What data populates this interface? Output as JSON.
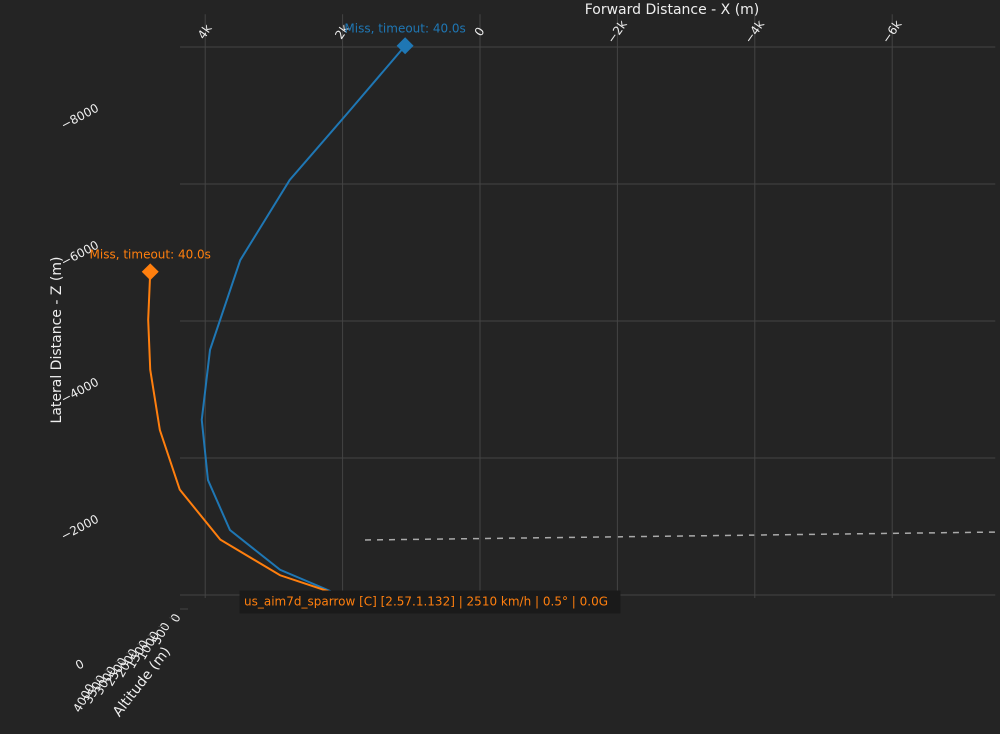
{
  "chart_data": {
    "type": "line3d",
    "x_title": "Forward Distance - X (m)",
    "z_title": "Lateral Distance - Z (m)",
    "y_title": "Altitude (m)",
    "xlim": [
      5000,
      -7500
    ],
    "zlim": [
      -9500,
      0
    ],
    "ylim": [
      0,
      4000
    ],
    "xticks": [
      {
        "value": 4000,
        "label": "4k"
      },
      {
        "value": 2000,
        "label": "2k"
      },
      0,
      {
        "value": -2000,
        "label": "−2k"
      },
      {
        "value": -4000,
        "label": "−4k"
      },
      {
        "value": -6000,
        "label": "−6k"
      }
    ],
    "zticks": [
      {
        "value": -8000,
        "label": "−8000"
      },
      {
        "value": -6000,
        "label": "−6000"
      },
      {
        "value": -4000,
        "label": "−4000"
      },
      {
        "value": -2000,
        "label": "−2000"
      },
      0
    ],
    "yticks": [
      0,
      500,
      1000,
      1500,
      2000,
      2500,
      3000,
      3500,
      4000
    ],
    "grid": true,
    "series": [
      {
        "color": "#1f77b4",
        "x": [
          2040,
          2910,
          3640,
          3960,
          4050,
          3930,
          3490,
          2770,
          1890,
          1090
        ],
        "z": [
          -1020,
          -1390,
          -1970,
          -2700,
          -3580,
          -4600,
          -5910,
          -7080,
          -8100,
          -9040
        ],
        "annotation": "Miss, timeout: 40.0s"
      },
      {
        "color": "#ff7f0e",
        "x": [
          2040,
          2910,
          3780,
          4370,
          4660,
          4800,
          4830,
          4800
        ],
        "z": [
          -1020,
          -1310,
          -1830,
          -2560,
          -3430,
          -4310,
          -5040,
          -5740
        ],
        "annotation": "Miss, timeout: 40.0s"
      }
    ],
    "hover_label": "us_aim7d_sparrow [C] [2.57.1.132] | 2510 km/h | 0.5° | 0.0G"
  }
}
